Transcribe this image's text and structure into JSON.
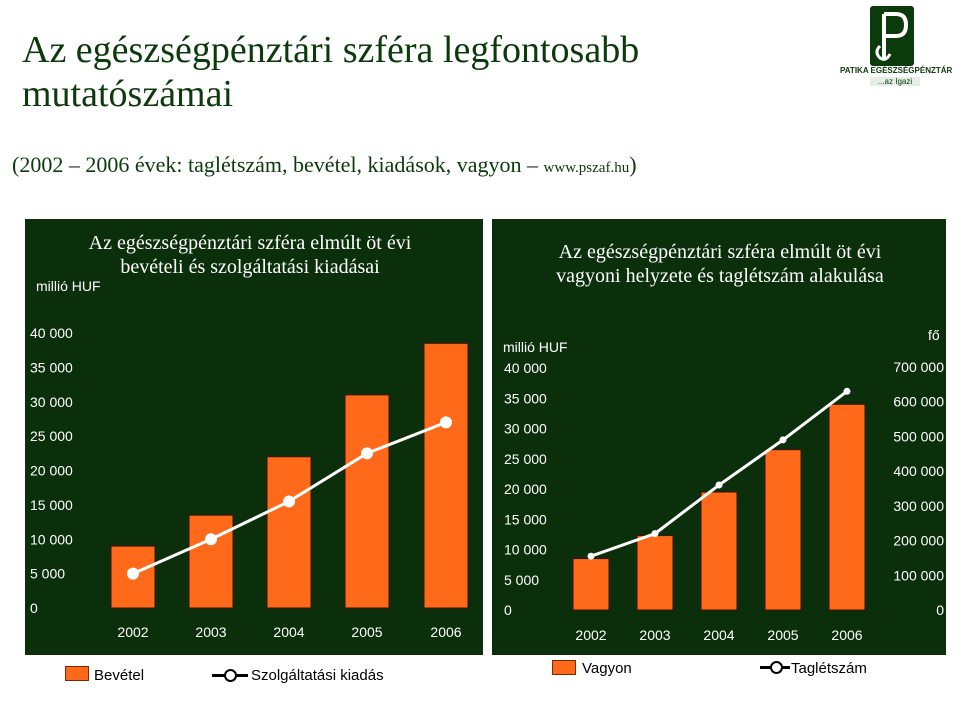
{
  "header": {
    "title": "Az egészségpénztári szféra legfontosabb mutatószámai",
    "subtitle_main": "(2002 – 2006 évek: taglétszám, bevétel, kiadások, vagyon –",
    "subtitle_url": "www.pszaf.hu",
    "subtitle_close": ")"
  },
  "logo": {
    "name": "PATIKA EGÉSZSÉGPÉNZTÁR",
    "tagline": "...az Igazi",
    "icon": "ph-monogram-icon"
  },
  "colors": {
    "panel_bg": "#0b2f0b",
    "bar": "#ff6a1a",
    "line": "#ffffff",
    "title": "#0b3a0b"
  },
  "chart_data": [
    {
      "type": "bar",
      "title": "Az egészségpénztári szféra elmúlt öt évi bevételi és szolgáltatási kiadásai",
      "unit_left": "millió HUF",
      "categories": [
        "2002",
        "2003",
        "2004",
        "2005",
        "2006"
      ],
      "y_ticks": [
        "0",
        "5 000",
        "10 000",
        "15 000",
        "20 000",
        "25 000",
        "30 000",
        "35 000",
        "40 000"
      ],
      "ylim": [
        0,
        40000
      ],
      "series": [
        {
          "name": "Bevétel",
          "kind": "bar",
          "axis": "left",
          "values": [
            9000,
            13500,
            22000,
            31000,
            38500
          ]
        },
        {
          "name": "Szolgáltatási kiadás",
          "kind": "line",
          "axis": "left",
          "values": [
            5000,
            10000,
            15500,
            22500,
            27000
          ]
        }
      ],
      "legend": "bottom",
      "grid": false
    },
    {
      "type": "bar",
      "title": "Az egészségpénztári szféra elmúlt öt évi vagyoni helyzete és taglétszám alakulása",
      "unit_left": "millió HUF",
      "unit_right": "fő",
      "categories": [
        "2002",
        "2003",
        "2004",
        "2005",
        "2006"
      ],
      "y_ticks": [
        "0",
        "5 000",
        "10 000",
        "15 000",
        "20 000",
        "25 000",
        "30 000",
        "35 000",
        "40 000"
      ],
      "y2_ticks": [
        "0",
        "100 000",
        "200 000",
        "300 000",
        "400 000",
        "500 000",
        "600 000",
        "700 000"
      ],
      "ylim": [
        0,
        40000
      ],
      "y2lim": [
        0,
        700000
      ],
      "series": [
        {
          "name": "Vagyon",
          "kind": "bar",
          "axis": "left",
          "values": [
            8500,
            12300,
            19500,
            26500,
            34000
          ]
        },
        {
          "name": "Taglétszám",
          "kind": "line",
          "axis": "right",
          "values": [
            155000,
            220000,
            360000,
            490000,
            630000
          ]
        }
      ],
      "legend": "bottom",
      "grid": false
    }
  ]
}
